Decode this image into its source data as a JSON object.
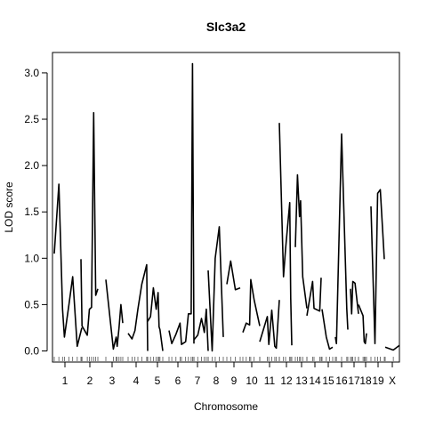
{
  "chart_data": {
    "type": "line",
    "title": "Slc3a2",
    "xlabel": "Chromosome",
    "ylabel": "LOD score",
    "ylim": [
      -0.12,
      3.22
    ],
    "yticks": [
      "0.0",
      "0.5",
      "1.0",
      "1.5",
      "2.0",
      "2.5",
      "3.0"
    ],
    "ytick_values": [
      0,
      0.5,
      1.0,
      1.5,
      2.0,
      2.5,
      3.0
    ],
    "grid": false,
    "line_color": "#000000",
    "chromosomes": [
      {
        "name": "1",
        "points": [
          [
            0,
            1.05
          ],
          [
            5,
            1.8
          ],
          [
            9,
            0.45
          ],
          [
            11,
            0.15
          ],
          [
            16,
            0.5
          ],
          [
            20,
            0.8
          ],
          [
            25,
            0.05
          ],
          [
            30,
            0.25
          ]
        ]
      },
      {
        "name": "2",
        "points": [
          [
            0,
            0.99
          ],
          [
            1,
            0.27
          ],
          [
            6,
            0.17
          ],
          [
            8,
            0.45
          ],
          [
            10,
            0.47
          ],
          [
            12,
            2.57
          ],
          [
            14,
            0.6
          ],
          [
            16,
            0.67
          ]
        ]
      },
      {
        "name": "3",
        "points": [
          [
            0,
            0.77
          ],
          [
            8,
            0.02
          ],
          [
            11,
            0.15
          ],
          [
            12,
            0.05
          ],
          [
            14,
            0.25
          ],
          [
            16,
            0.5
          ],
          [
            18,
            0.3
          ]
        ]
      },
      {
        "name": "4",
        "points": [
          [
            0,
            0.19
          ],
          [
            4,
            0.13
          ],
          [
            7,
            0.22
          ],
          [
            10,
            0.45
          ],
          [
            14,
            0.72
          ],
          [
            19,
            0.93
          ],
          [
            20,
            0.0
          ]
        ]
      },
      {
        "name": "5",
        "points": [
          [
            0,
            0.32
          ],
          [
            3,
            0.37
          ],
          [
            6,
            0.68
          ],
          [
            9,
            0.45
          ],
          [
            11,
            0.63
          ],
          [
            12,
            0.26
          ],
          [
            13,
            0.23
          ],
          [
            16,
            0.0
          ]
        ]
      },
      {
        "name": "6",
        "points": [
          [
            0,
            0.22
          ],
          [
            2,
            0.08
          ],
          [
            5,
            0.18
          ],
          [
            8,
            0.3
          ],
          [
            9,
            0.07
          ],
          [
            12,
            0.1
          ],
          [
            14,
            0.4
          ],
          [
            16,
            0.4
          ],
          [
            17,
            3.1
          ],
          [
            18,
            0.08
          ]
        ]
      },
      {
        "name": "7",
        "points": [
          [
            0,
            0.12
          ],
          [
            4,
            0.17
          ],
          [
            8,
            0.35
          ],
          [
            11,
            0.2
          ],
          [
            13,
            0.45
          ],
          [
            15,
            0.0
          ]
        ]
      },
      {
        "name": "8",
        "points": [
          [
            0,
            0.87
          ],
          [
            4,
            0.0
          ],
          [
            7,
            1.0
          ],
          [
            11,
            1.34
          ],
          [
            15,
            0.15
          ]
        ]
      },
      {
        "name": "9",
        "points": [
          [
            0,
            0.72
          ],
          [
            4,
            0.97
          ],
          [
            9,
            0.66
          ],
          [
            14,
            0.68
          ]
        ]
      },
      {
        "name": "10",
        "points": [
          [
            0,
            0.2
          ],
          [
            3,
            0.3
          ],
          [
            6,
            0.28
          ],
          [
            7,
            0.77
          ],
          [
            10,
            0.55
          ],
          [
            15,
            0.27
          ]
        ]
      },
      {
        "name": "11",
        "points": [
          [
            0,
            0.1
          ],
          [
            5,
            0.37
          ],
          [
            6,
            0.07
          ],
          [
            8,
            0.44
          ],
          [
            10,
            0.05
          ],
          [
            11,
            0.03
          ],
          [
            13,
            0.55
          ]
        ]
      },
      {
        "name": "12",
        "points": [
          [
            0,
            2.46
          ],
          [
            4,
            0.8
          ],
          [
            6,
            1.1
          ],
          [
            10,
            1.6
          ],
          [
            11,
            0.57
          ],
          [
            12,
            0.06
          ]
        ]
      },
      {
        "name": "13",
        "points": [
          [
            0,
            1.12
          ],
          [
            2,
            1.9
          ],
          [
            4,
            1.45
          ],
          [
            5,
            1.62
          ],
          [
            7,
            0.8
          ],
          [
            11,
            0.46
          ]
        ]
      },
      {
        "name": "14",
        "points": [
          [
            0,
            0.38
          ],
          [
            4,
            0.75
          ],
          [
            5,
            0.46
          ],
          [
            9,
            0.43
          ],
          [
            10,
            0.79
          ]
        ]
      },
      {
        "name": "15",
        "points": [
          [
            0,
            0.45
          ],
          [
            4,
            0.15
          ],
          [
            7,
            0.02
          ],
          [
            10,
            0.04
          ]
        ]
      },
      {
        "name": "16",
        "points": [
          [
            0,
            0.15
          ],
          [
            1,
            0.08
          ],
          [
            6,
            2.34
          ],
          [
            11,
            0.46
          ],
          [
            12,
            0.23
          ]
        ]
      },
      {
        "name": "17",
        "points": [
          [
            0,
            0.67
          ],
          [
            1,
            0.4
          ],
          [
            2,
            0.75
          ],
          [
            4,
            0.73
          ],
          [
            7,
            0.4
          ]
        ]
      },
      {
        "name": "18",
        "points": [
          [
            0,
            0.5
          ],
          [
            4,
            0.38
          ],
          [
            5,
            0.1
          ],
          [
            6,
            0.08
          ],
          [
            7,
            0.19
          ]
        ]
      },
      {
        "name": "19",
        "points": [
          [
            0,
            1.56
          ],
          [
            3,
            0.08
          ],
          [
            5,
            1.7
          ],
          [
            7,
            1.74
          ],
          [
            10,
            0.99
          ]
        ]
      },
      {
        "name": "X",
        "points": [
          [
            0,
            0.04
          ],
          [
            8,
            0.01
          ],
          [
            14,
            0.06
          ]
        ]
      }
    ]
  }
}
